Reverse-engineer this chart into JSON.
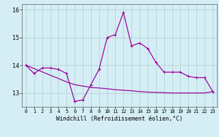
{
  "xlabel": "Windchill (Refroidissement éolien,°C)",
  "hours": [
    0,
    1,
    2,
    3,
    4,
    5,
    6,
    7,
    8,
    9,
    10,
    11,
    12,
    13,
    14,
    15,
    16,
    17,
    18,
    19,
    20,
    21,
    22,
    23
  ],
  "windchill": [
    14.0,
    13.7,
    13.9,
    13.9,
    13.85,
    13.7,
    12.7,
    12.75,
    13.3,
    13.85,
    15.0,
    15.1,
    15.9,
    14.7,
    14.8,
    14.6,
    14.1,
    13.75,
    13.75,
    13.75,
    13.6,
    13.55,
    13.55,
    13.05
  ],
  "trend": [
    14.0,
    13.88,
    13.76,
    13.64,
    13.52,
    13.4,
    13.3,
    13.25,
    13.2,
    13.18,
    13.15,
    13.12,
    13.1,
    13.08,
    13.05,
    13.03,
    13.02,
    13.01,
    13.0,
    13.0,
    13.0,
    13.0,
    13.0,
    13.05
  ],
  "line_color": "#990099",
  "bg_color": "#d5eef5",
  "grid_color": "#aacccc",
  "ylim": [
    12.5,
    16.2
  ],
  "yticks": [
    13,
    14,
    15,
    16
  ]
}
